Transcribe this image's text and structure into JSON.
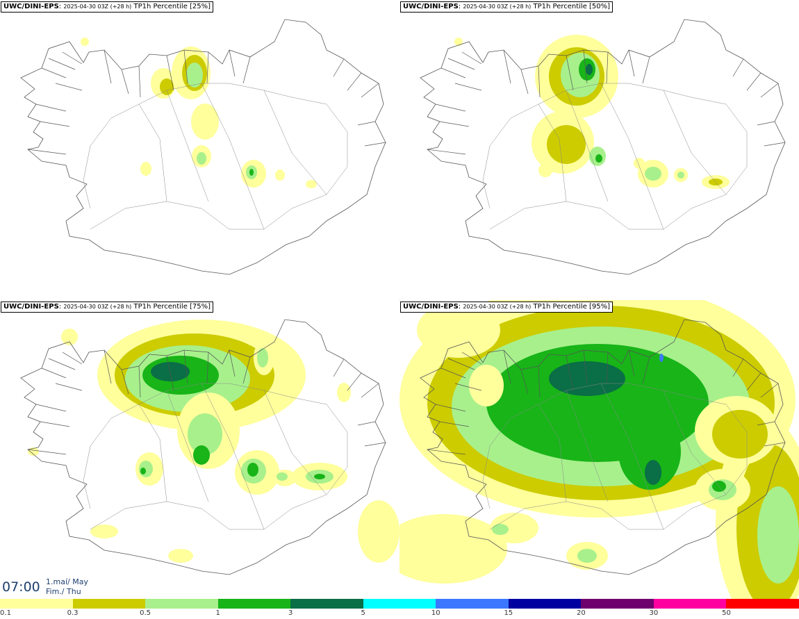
{
  "panels": [
    {
      "model": "UWC/DINI-EPS",
      "run": "2025-04-30 03Z (+28 h)",
      "label": "TP1h Percentile [25%]",
      "level": 0
    },
    {
      "model": "UWC/DINI-EPS",
      "run": "2025-04-30 03Z (+28 h)",
      "label": "TP1h Percentile [50%]",
      "level": 1
    },
    {
      "model": "UWC/DINI-EPS",
      "run": "2025-04-30 03Z (+28 h)",
      "label": "TP1h Percentile [75%]",
      "level": 2
    },
    {
      "model": "UWC/DINI-EPS",
      "run": "2025-04-30 03Z (+28 h)",
      "label": "TP1h Percentile [95%]",
      "level": 3
    }
  ],
  "valid_time": {
    "hour": "07:00",
    "date_line1": "1.maí/ May",
    "date_line2": "Fim./ Thu"
  },
  "legend": {
    "colors": [
      "#ffff9c",
      "#cccc00",
      "#a8f08c",
      "#18b418",
      "#0a6e46",
      "#00ffff",
      "#3c78ff",
      "#0000a0",
      "#6e006e",
      "#ff00a0",
      "#ff0000"
    ],
    "tick_labels": [
      "0.1",
      "0.3",
      "0.5",
      "1",
      "3",
      "5",
      "10",
      "15",
      "20",
      "30",
      "50"
    ]
  }
}
